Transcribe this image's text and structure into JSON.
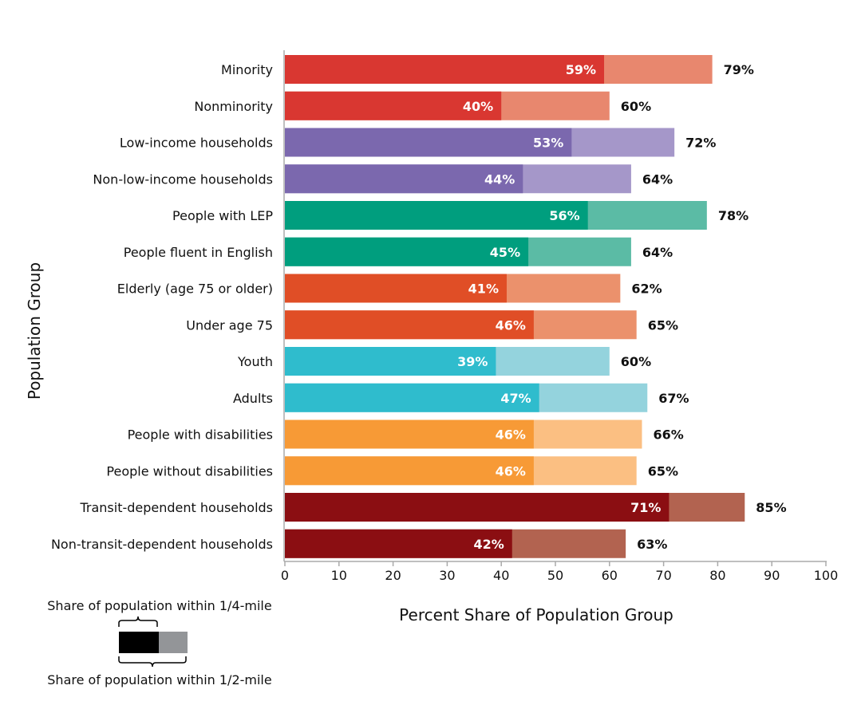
{
  "chart_data": {
    "type": "bar",
    "orientation": "horizontal",
    "stacked_overlay": true,
    "xlabel": "Percent Share of Population Group",
    "ylabel": "Population Group",
    "xlim": [
      0,
      100
    ],
    "xticks": [
      0,
      10,
      20,
      30,
      40,
      50,
      60,
      70,
      80,
      90,
      100
    ],
    "grid": false,
    "categories": [
      "Minority",
      "Nonminority",
      "Low-income households",
      "Non-low-income households",
      "People with LEP",
      "People fluent in English",
      "Elderly (age 75 or older)",
      "Under age 75",
      "Youth",
      "Adults",
      "People with disabilities",
      "People without disabilities",
      "Transit-dependent households",
      "Non-transit-dependent households"
    ],
    "series": [
      {
        "name": "Share of population within 1/4-mile",
        "values": [
          59,
          40,
          53,
          44,
          56,
          45,
          41,
          46,
          39,
          47,
          46,
          46,
          71,
          42
        ]
      },
      {
        "name": "Share of population within 1/2-mile",
        "values": [
          79,
          60,
          72,
          64,
          78,
          64,
          62,
          65,
          60,
          67,
          66,
          65,
          85,
          63
        ]
      }
    ],
    "colors_dark": [
      "#d93731",
      "#d93731",
      "#7b68ae",
      "#7b68ae",
      "#009e7e",
      "#009e7e",
      "#e04e26",
      "#e04e26",
      "#2fbccd",
      "#2fbccd",
      "#f79a36",
      "#f79a36",
      "#8b0e12",
      "#8b0e12"
    ],
    "colors_light": [
      "#e8876e",
      "#e8876e",
      "#a597c9",
      "#a597c9",
      "#5bbba5",
      "#5bbba5",
      "#eb916c",
      "#eb916c",
      "#94d3dd",
      "#94d3dd",
      "#fbbf82",
      "#fbbf82",
      "#b26350",
      "#b26350"
    ],
    "legend": {
      "placement": "bottom-left",
      "quarter_mile_label": "Share of population within 1/4-mile",
      "half_mile_label": "Share of population within 1/2-mile",
      "quarter_color": "#000000",
      "half_color": "#939598"
    }
  }
}
